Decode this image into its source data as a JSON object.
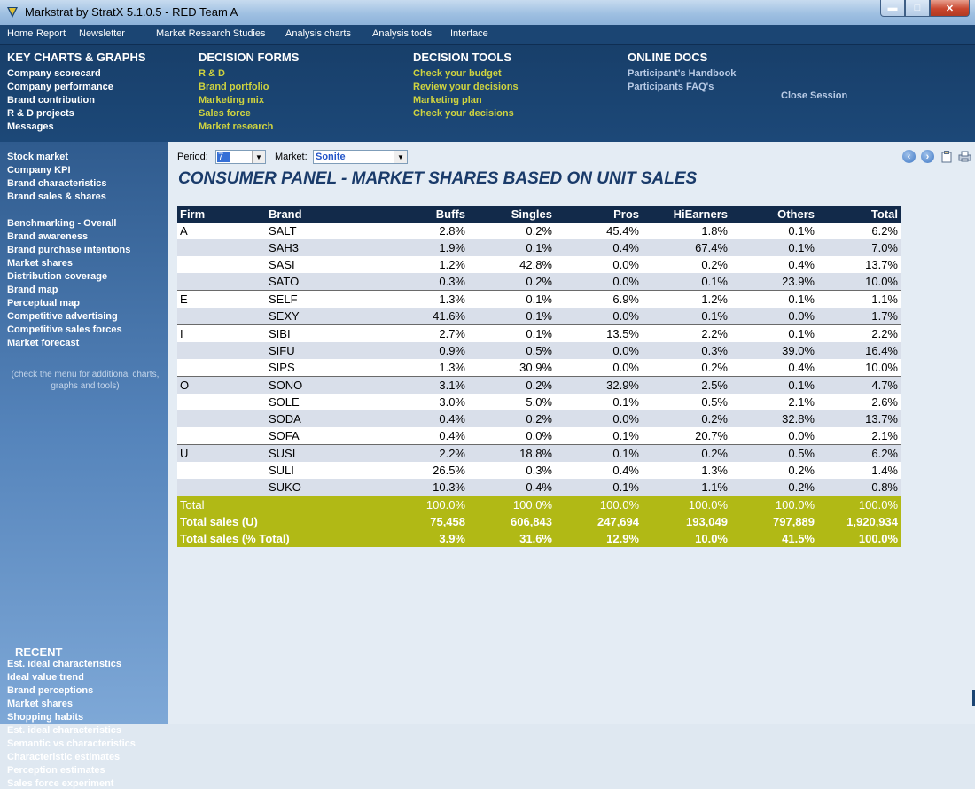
{
  "window": {
    "title": "Markstrat by StratX 5.1.0.5 - RED Team A"
  },
  "menu": [
    "Home",
    "Report",
    "Newsletter",
    "Market Research Studies",
    "Analysis charts",
    "Analysis tools",
    "Interface"
  ],
  "header": {
    "key_charts": {
      "title": "KEY CHARTS & GRAPHS",
      "links": [
        "Company scorecard",
        "Company performance",
        "Brand contribution",
        "R & D projects",
        "Messages"
      ]
    },
    "decision_forms": {
      "title": "DECISION FORMS",
      "links": [
        "R & D",
        "Brand portfolio",
        "Marketing mix",
        "Sales force",
        "Market research"
      ]
    },
    "decision_tools": {
      "title": "DECISION TOOLS",
      "links": [
        "Check your budget",
        "Review your decisions",
        "Marketing plan",
        "Check your decisions"
      ]
    },
    "online_docs": {
      "title": "ONLINE DOCS",
      "links": [
        "Participant's Handbook",
        "Participants FAQ's"
      ]
    },
    "close_session": "Close Session"
  },
  "sidebar": {
    "group1": [
      "Stock market",
      "Company KPI",
      "Brand characteristics",
      "Brand sales & shares"
    ],
    "group2": [
      "Benchmarking - Overall",
      "Brand awareness",
      "Brand purchase intentions",
      "Market shares",
      "Distribution coverage",
      "Brand map",
      "Perceptual map",
      "Competitive advertising",
      "Competitive sales forces",
      "Market forecast"
    ],
    "note": "(check the menu for additional charts, graphs and tools)",
    "recent_title": "RECENT",
    "recent": [
      "Est. ideal characteristics",
      "Ideal value trend",
      "Brand perceptions",
      "Market shares",
      "Shopping habits",
      "Est. ideal characteristics",
      "Semantic vs characteristics",
      "Characteristic estimates",
      "Perception estimates",
      "Sales force experiment"
    ]
  },
  "toolbar": {
    "period_label": "Period:",
    "period_value": "7",
    "market_label": "Market:",
    "market_value": "Sonite"
  },
  "page_title": "CONSUMER PANEL - MARKET SHARES BASED ON UNIT SALES",
  "table": {
    "columns": [
      "Firm",
      "Brand",
      "Buffs",
      "Singles",
      "Pros",
      "HiEarners",
      "Others",
      "Total"
    ],
    "rows": [
      [
        "A",
        "SALT",
        "2.8%",
        "0.2%",
        "45.4%",
        "1.8%",
        "0.1%",
        "6.2%"
      ],
      [
        "",
        "SAH3",
        "1.9%",
        "0.1%",
        "0.4%",
        "67.4%",
        "0.1%",
        "7.0%"
      ],
      [
        "",
        "SASI",
        "1.2%",
        "42.8%",
        "0.0%",
        "0.2%",
        "0.4%",
        "13.7%"
      ],
      [
        "",
        "SATO",
        "0.3%",
        "0.2%",
        "0.0%",
        "0.1%",
        "23.9%",
        "10.0%"
      ],
      [
        "E",
        "SELF",
        "1.3%",
        "0.1%",
        "6.9%",
        "1.2%",
        "0.1%",
        "1.1%"
      ],
      [
        "",
        "SEXY",
        "41.6%",
        "0.1%",
        "0.0%",
        "0.1%",
        "0.0%",
        "1.7%"
      ],
      [
        "I",
        "SIBI",
        "2.7%",
        "0.1%",
        "13.5%",
        "2.2%",
        "0.1%",
        "2.2%"
      ],
      [
        "",
        "SIFU",
        "0.9%",
        "0.5%",
        "0.0%",
        "0.3%",
        "39.0%",
        "16.4%"
      ],
      [
        "",
        "SIPS",
        "1.3%",
        "30.9%",
        "0.0%",
        "0.2%",
        "0.4%",
        "10.0%"
      ],
      [
        "O",
        "SONO",
        "3.1%",
        "0.2%",
        "32.9%",
        "2.5%",
        "0.1%",
        "4.7%"
      ],
      [
        "",
        "SOLE",
        "3.0%",
        "5.0%",
        "0.1%",
        "0.5%",
        "2.1%",
        "2.6%"
      ],
      [
        "",
        "SODA",
        "0.4%",
        "0.2%",
        "0.0%",
        "0.2%",
        "32.8%",
        "13.7%"
      ],
      [
        "",
        "SOFA",
        "0.4%",
        "0.0%",
        "0.1%",
        "20.7%",
        "0.0%",
        "2.1%"
      ],
      [
        "U",
        "SUSI",
        "2.2%",
        "18.8%",
        "0.1%",
        "0.2%",
        "0.5%",
        "6.2%"
      ],
      [
        "",
        "SULI",
        "26.5%",
        "0.3%",
        "0.4%",
        "1.3%",
        "0.2%",
        "1.4%"
      ],
      [
        "",
        "SUKO",
        "10.3%",
        "0.4%",
        "0.1%",
        "1.1%",
        "0.2%",
        "0.8%"
      ]
    ],
    "totals": [
      [
        "Total",
        "100.0%",
        "100.0%",
        "100.0%",
        "100.0%",
        "100.0%",
        "100.0%"
      ],
      [
        "Total sales (U)",
        "75,458",
        "606,843",
        "247,694",
        "193,049",
        "797,889",
        "1,920,934"
      ],
      [
        "Total sales (% Total)",
        "3.9%",
        "31.6%",
        "12.9%",
        "10.0%",
        "41.5%",
        "100.0%"
      ]
    ]
  },
  "colors": {
    "header_bg": "#1c4878",
    "table_header_bg": "#122a4a",
    "totals_bg": "#b1b915",
    "link_yellow": "#cfd33f",
    "title_blue": "#1a3b6a"
  }
}
